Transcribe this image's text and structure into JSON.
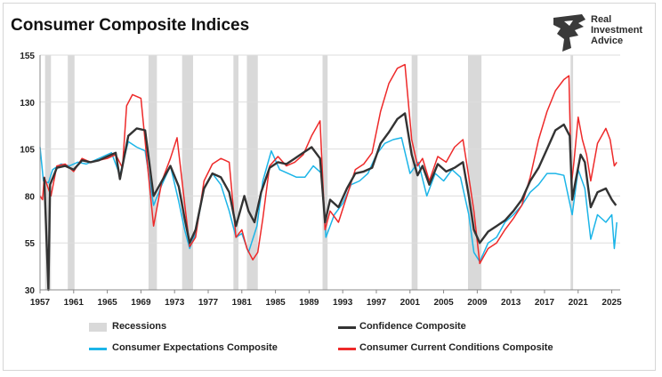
{
  "title": "Consumer Composite Indices",
  "logo": {
    "line1": "Real",
    "line2": "Investment",
    "line3": "Advice"
  },
  "chart_data": {
    "type": "line",
    "title": "Consumer Composite Indices",
    "xlabel": "",
    "ylabel": "",
    "xlim": [
      1957,
      2026
    ],
    "ylim": [
      30,
      155
    ],
    "yticks": [
      30,
      55,
      80,
      105,
      130,
      155
    ],
    "xticks": [
      1957,
      1961,
      1965,
      1969,
      1973,
      1977,
      1981,
      1985,
      1989,
      1993,
      1997,
      2001,
      2005,
      2009,
      2013,
      2017,
      2021,
      2025
    ],
    "grid": "horizontal",
    "legend_position": "bottom",
    "recessions": [
      [
        1957.6,
        1958.3
      ],
      [
        1960.3,
        1961.1
      ],
      [
        1969.9,
        1970.9
      ],
      [
        1973.9,
        1975.2
      ],
      [
        1980.0,
        1980.6
      ],
      [
        1981.6,
        1982.9
      ],
      [
        1990.6,
        1991.2
      ],
      [
        2001.2,
        2001.9
      ],
      [
        2007.9,
        2009.5
      ],
      [
        2020.1,
        2020.4
      ]
    ],
    "legend_labels": {
      "recessions": "Recessions"
    },
    "colors": {
      "confidence": "#333333",
      "expectations": "#1cb5e8",
      "current": "#ee2a2a",
      "recession": "#d9d9d9",
      "grid": "#dddddd"
    },
    "series": [
      {
        "name": "Confidence Composite",
        "x": [
          1957.5,
          1958.0,
          1958.2,
          1959.0,
          1960.0,
          1961.0,
          1962.0,
          1963.0,
          1964.0,
          1965.0,
          1966.0,
          1966.5,
          1967.5,
          1968.5,
          1969.5,
          1970.5,
          1971.5,
          1972.5,
          1973.5,
          1974.2,
          1974.8,
          1975.5,
          1976.5,
          1977.5,
          1978.5,
          1979.5,
          1980.3,
          1980.8,
          1981.3,
          1981.8,
          1982.5,
          1983.3,
          1984.3,
          1985.3,
          1986.3,
          1987.3,
          1988.3,
          1989.3,
          1990.3,
          1990.9,
          1991.5,
          1992.5,
          1993.5,
          1994.5,
          1995.5,
          1996.5,
          1997.5,
          1998.5,
          1999.5,
          2000.4,
          2001.2,
          2001.9,
          2002.5,
          2003.3,
          2004.3,
          2005.3,
          2006.3,
          2007.3,
          2008.0,
          2008.6,
          2009.3,
          2010.3,
          2011.3,
          2012.3,
          2013.3,
          2014.3,
          2015.3,
          2016.3,
          2017.3,
          2018.3,
          2019.3,
          2020.0,
          2020.3,
          2020.7,
          2021.3,
          2021.8,
          2022.5,
          2023.3,
          2024.3,
          2025.0,
          2025.5
        ],
        "y": [
          90,
          30,
          86,
          95,
          96,
          94,
          99,
          98,
          99,
          101,
          103,
          89,
          112,
          116,
          115,
          80,
          88,
          96,
          85,
          68,
          55,
          62,
          84,
          92,
          90,
          82,
          64,
          72,
          80,
          72,
          66,
          82,
          95,
          98,
          97,
          100,
          103,
          106,
          100,
          66,
          78,
          74,
          84,
          92,
          93,
          95,
          108,
          114,
          121,
          124,
          102,
          91,
          96,
          86,
          97,
          93,
          95,
          98,
          80,
          62,
          55,
          61,
          64,
          67,
          72,
          78,
          88,
          95,
          105,
          115,
          118,
          112,
          78,
          88,
          102,
          98,
          74,
          82,
          84,
          78,
          75
        ]
      },
      {
        "name": "Consumer Expectations Composite",
        "x": [
          1957.0,
          1957.4,
          1958.0,
          1958.5,
          1959.5,
          1960.5,
          1961.5,
          1962.5,
          1963.5,
          1964.5,
          1965.5,
          1966.5,
          1967.5,
          1968.5,
          1969.5,
          1970.5,
          1971.5,
          1972.5,
          1973.5,
          1974.2,
          1974.8,
          1975.5,
          1976.5,
          1977.5,
          1978.5,
          1979.5,
          1980.3,
          1981.0,
          1981.8,
          1982.8,
          1983.5,
          1984.5,
          1985.5,
          1986.5,
          1987.5,
          1988.5,
          1989.5,
          1990.5,
          1991.0,
          1992.0,
          1993.0,
          1994.0,
          1995.0,
          1996.0,
          1997.0,
          1998.0,
          1999.0,
          2000.0,
          2001.0,
          2002.0,
          2003.0,
          2004.0,
          2005.0,
          2006.0,
          2007.0,
          2008.0,
          2008.6,
          2009.3,
          2010.3,
          2011.3,
          2012.3,
          2013.3,
          2014.3,
          2015.3,
          2016.3,
          2017.3,
          2018.3,
          2019.3,
          2020.3,
          2021.0,
          2021.8,
          2022.5,
          2023.3,
          2024.3,
          2025.0,
          2025.3,
          2025.6
        ],
        "y": [
          106,
          88,
          87,
          94,
          97,
          96,
          98,
          97,
          99,
          101,
          103,
          91,
          109,
          106,
          104,
          75,
          86,
          96,
          77,
          62,
          52,
          60,
          84,
          92,
          86,
          72,
          58,
          60,
          50,
          64,
          88,
          104,
          94,
          92,
          90,
          90,
          96,
          92,
          58,
          70,
          76,
          86,
          88,
          92,
          102,
          108,
          110,
          111,
          92,
          98,
          80,
          92,
          88,
          94,
          90,
          70,
          50,
          45,
          55,
          58,
          66,
          70,
          75,
          82,
          86,
          92,
          92,
          91,
          70,
          94,
          84,
          57,
          70,
          66,
          70,
          52,
          66
        ]
      },
      {
        "name": "Consumer Current Conditions Composite",
        "x": [
          1957.0,
          1957.3,
          1957.5,
          1958.3,
          1959.0,
          1960.0,
          1961.0,
          1962.0,
          1963.0,
          1964.0,
          1965.0,
          1966.0,
          1966.8,
          1967.3,
          1968.0,
          1969.0,
          1969.7,
          1970.5,
          1971.5,
          1972.5,
          1973.3,
          1974.2,
          1974.8,
          1975.5,
          1976.5,
          1977.5,
          1978.5,
          1979.5,
          1980.3,
          1981.0,
          1981.6,
          1982.3,
          1982.9,
          1983.5,
          1984.3,
          1985.3,
          1986.3,
          1987.3,
          1988.3,
          1989.3,
          1990.3,
          1990.9,
          1991.5,
          1992.5,
          1993.5,
          1994.5,
          1995.5,
          1996.5,
          1997.5,
          1998.5,
          1999.5,
          2000.4,
          2001.2,
          2001.9,
          2002.5,
          2003.3,
          2004.3,
          2005.3,
          2006.3,
          2007.3,
          2008.0,
          2008.6,
          2009.3,
          2010.3,
          2011.3,
          2012.3,
          2013.3,
          2014.3,
          2015.3,
          2016.3,
          2017.3,
          2018.3,
          2019.3,
          2019.9,
          2020.2,
          2020.5,
          2021.0,
          2021.5,
          2022.0,
          2022.5,
          2023.3,
          2024.3,
          2024.8,
          2025.3,
          2025.6
        ],
        "y": [
          80,
          78,
          90,
          80,
          96,
          97,
          93,
          100,
          98,
          99,
          100,
          102,
          95,
          128,
          134,
          132,
          100,
          64,
          88,
          100,
          111,
          76,
          53,
          58,
          88,
          97,
          100,
          98,
          58,
          62,
          52,
          46,
          50,
          68,
          96,
          101,
          96,
          98,
          102,
          112,
          120,
          62,
          72,
          66,
          80,
          94,
          97,
          103,
          125,
          140,
          148,
          150,
          110,
          96,
          100,
          88,
          101,
          98,
          106,
          110,
          90,
          72,
          44,
          52,
          55,
          62,
          68,
          75,
          90,
          110,
          125,
          136,
          142,
          144,
          86,
          98,
          122,
          110,
          102,
          88,
          108,
          116,
          110,
          96,
          98
        ]
      }
    ]
  }
}
